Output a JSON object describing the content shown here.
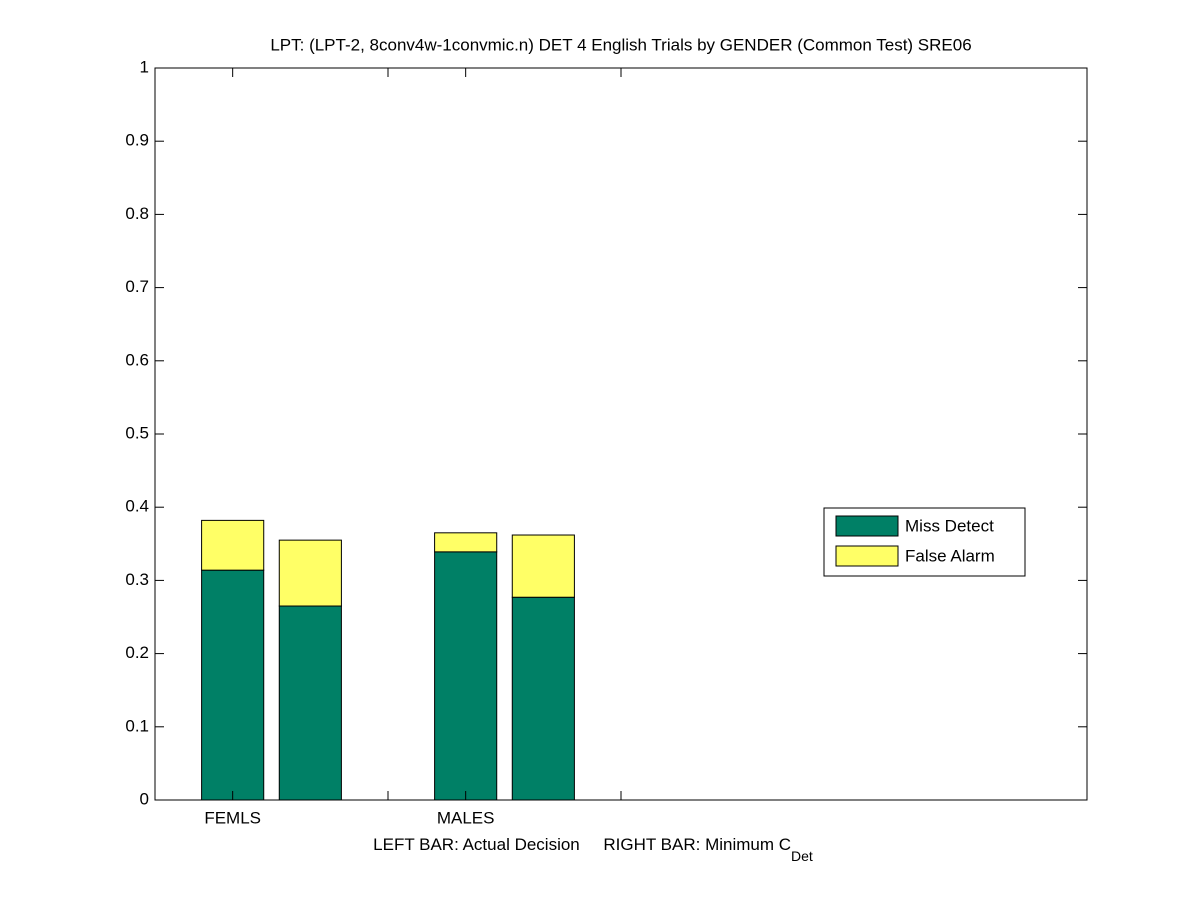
{
  "chart_data": {
    "type": "stacked_bar",
    "title": "LPT: (LPT-2, 8conv4w-1convmic.n) DET 4 English Trials by GENDER (Common Test) SRE06",
    "xlabel": "LEFT BAR: Actual Decision     RIGHT BAR: Minimum C",
    "xlabel_subscript": "Det",
    "x": [
      1,
      2,
      4,
      5
    ],
    "bar_width": 0.8,
    "series": [
      {
        "name": "Miss Detect",
        "color": "#008066",
        "values": [
          0.314,
          0.265,
          0.339,
          0.277
        ]
      },
      {
        "name": "False Alarm",
        "color": "#ffff66",
        "values": [
          0.068,
          0.09,
          0.026,
          0.085
        ]
      }
    ],
    "xlim": [
      0,
      12
    ],
    "xticks": [
      1,
      3,
      4,
      6
    ],
    "xtick_labels": [
      "FEMLS",
      null,
      "MALES",
      null
    ],
    "ylim": [
      0,
      1
    ],
    "yticks": [
      0,
      0.1,
      0.2,
      0.3,
      0.4,
      0.5,
      0.6,
      0.7,
      0.8,
      0.9,
      1
    ],
    "grid": false,
    "legend": "east"
  }
}
